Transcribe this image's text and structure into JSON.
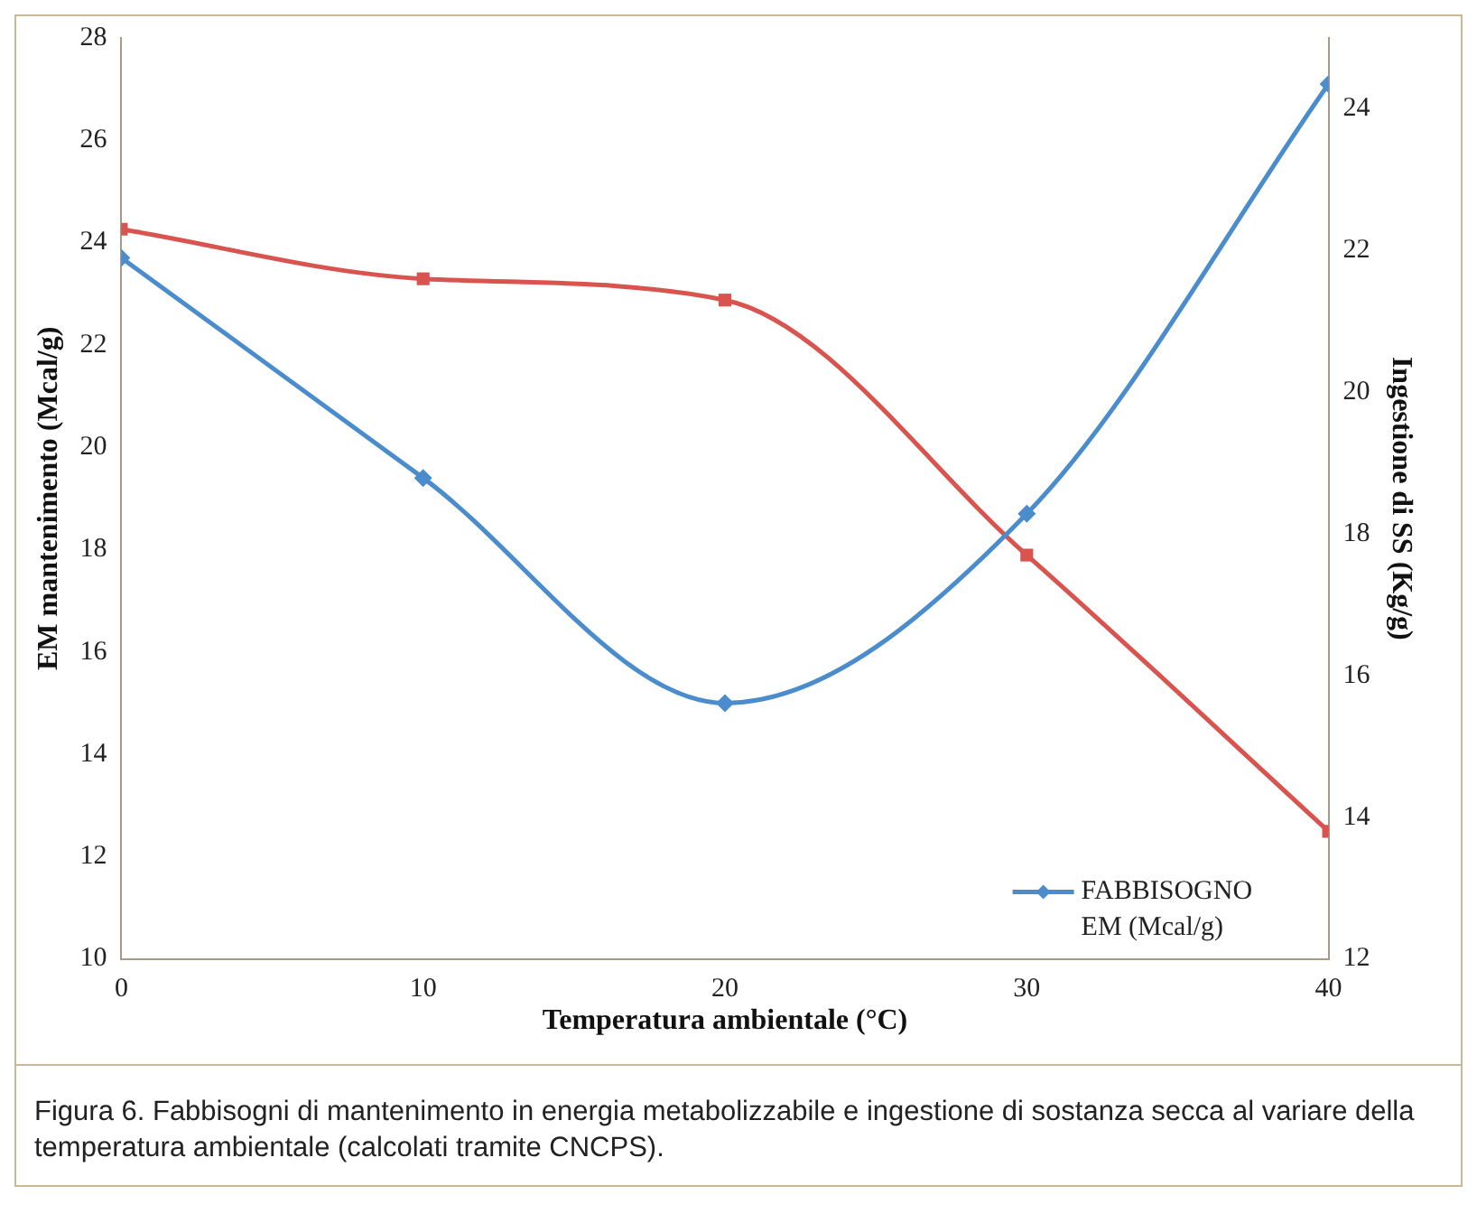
{
  "chart_data": {
    "type": "line",
    "xlabel": "Temperatura ambientale (°C)",
    "ylabel": "EM mantenimento (Mcal/g)",
    "y2label": "Ingestione di SS (Kg/g)",
    "x": [
      0,
      10,
      20,
      30,
      40
    ],
    "xlim": [
      0,
      40
    ],
    "xticks": [
      0,
      10,
      20,
      30,
      40
    ],
    "ylim": [
      10,
      28
    ],
    "yticks": [
      10,
      12,
      14,
      16,
      18,
      20,
      22,
      24,
      26,
      28
    ],
    "y2lim": [
      12,
      25
    ],
    "y2ticks": [
      12,
      14,
      16,
      18,
      20,
      22,
      24
    ],
    "series": [
      {
        "name": "FABBISOGNO EM (Mcal/g)",
        "color": "#4a8ccc",
        "marker": "diamond",
        "values": [
          23.7,
          19.4,
          15.0,
          18.7,
          27.1
        ]
      },
      {
        "color": "#d9534f",
        "marker": "square",
        "axis": "y2",
        "values": [
          22.3,
          21.6,
          21.3,
          17.7,
          13.8
        ]
      }
    ],
    "grid": false,
    "legend": "bottom right",
    "annotations": [
      "Figura 6. Fabbisogni di mantenimento in energia metabolizzabile e ingestione di sostanza secca al variare della temperatura ambientale (calcolati tramite CNCPS)."
    ]
  }
}
